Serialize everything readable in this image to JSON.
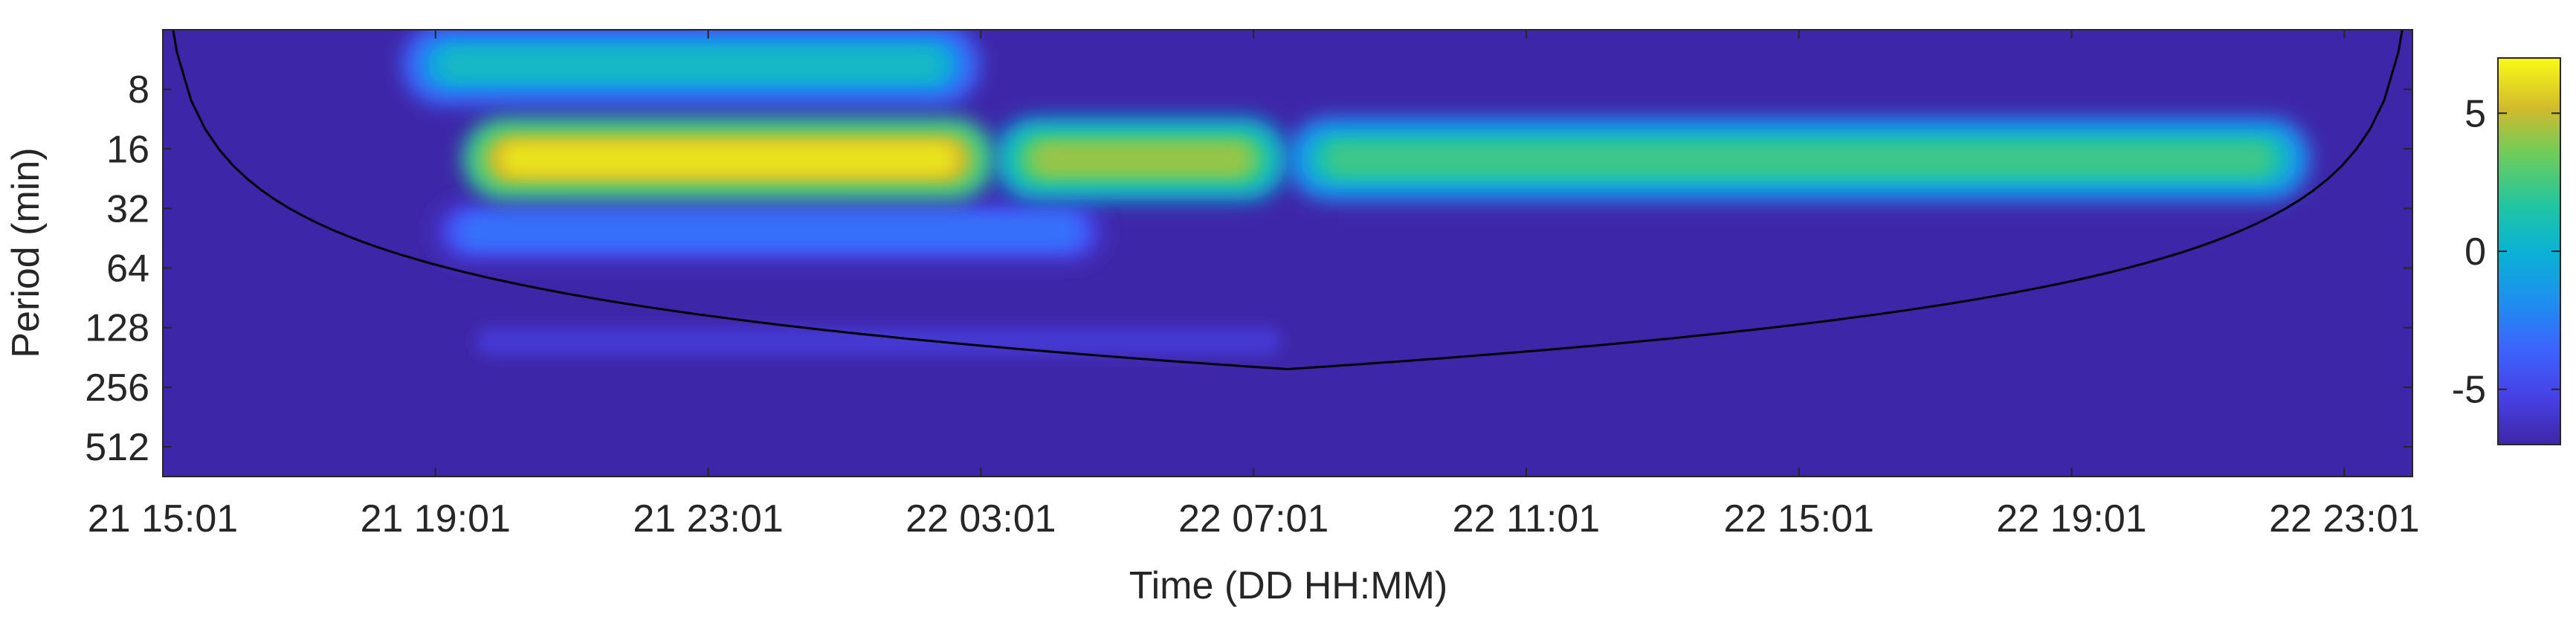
{
  "chart_data": {
    "type": "heatmap",
    "title": "",
    "xlabel": "Time (DD HH:MM)",
    "ylabel": "Period (min)",
    "x_tick_labels": [
      "21 15:01",
      "21 19:01",
      "21 23:01",
      "22 03:01",
      "22 07:01",
      "22 11:01",
      "22 15:01",
      "22 19:01",
      "22 23:01"
    ],
    "x_tick_hours": [
      0,
      4,
      8,
      12,
      16,
      20,
      24,
      28,
      32
    ],
    "x_range_hours": [
      0,
      33.0
    ],
    "y_scale": "log2",
    "y_reversed": true,
    "y_ticks": [
      8,
      16,
      32,
      64,
      128,
      256,
      512
    ],
    "y_tick_labels": [
      "8",
      "16",
      "32",
      "64",
      "128",
      "256",
      "512"
    ],
    "y_range": [
      4,
      724
    ],
    "colorbar": {
      "range": [
        -7,
        7
      ],
      "ticks": [
        5,
        0,
        -5
      ],
      "tick_labels": [
        "5",
        "0",
        "-5"
      ],
      "colormap": "parula"
    },
    "power_blobs": [
      {
        "t0": 4.4,
        "t1": 12.2,
        "period": 18,
        "power": 6.3
      },
      {
        "t0": 12.2,
        "t1": 16.5,
        "period": 18,
        "power": 4.2
      },
      {
        "t0": 16.5,
        "t1": 31.5,
        "period": 18,
        "power": 2.3
      },
      {
        "t0": 3.5,
        "t1": 12.0,
        "period": 6,
        "power": 0.5
      },
      {
        "t0": 3.8,
        "t1": 14.0,
        "period": 42,
        "power": -3.0
      },
      {
        "t0": 4.0,
        "t1": 17.0,
        "period": 150,
        "power": -5.8
      }
    ],
    "cone_of_influence": {
      "color": "#000000",
      "max_period": 724,
      "center_hours": 16.6
    },
    "colors": {
      "background_value": "#3e26a8",
      "axis": "#262626",
      "coi_line": "#000000"
    }
  }
}
